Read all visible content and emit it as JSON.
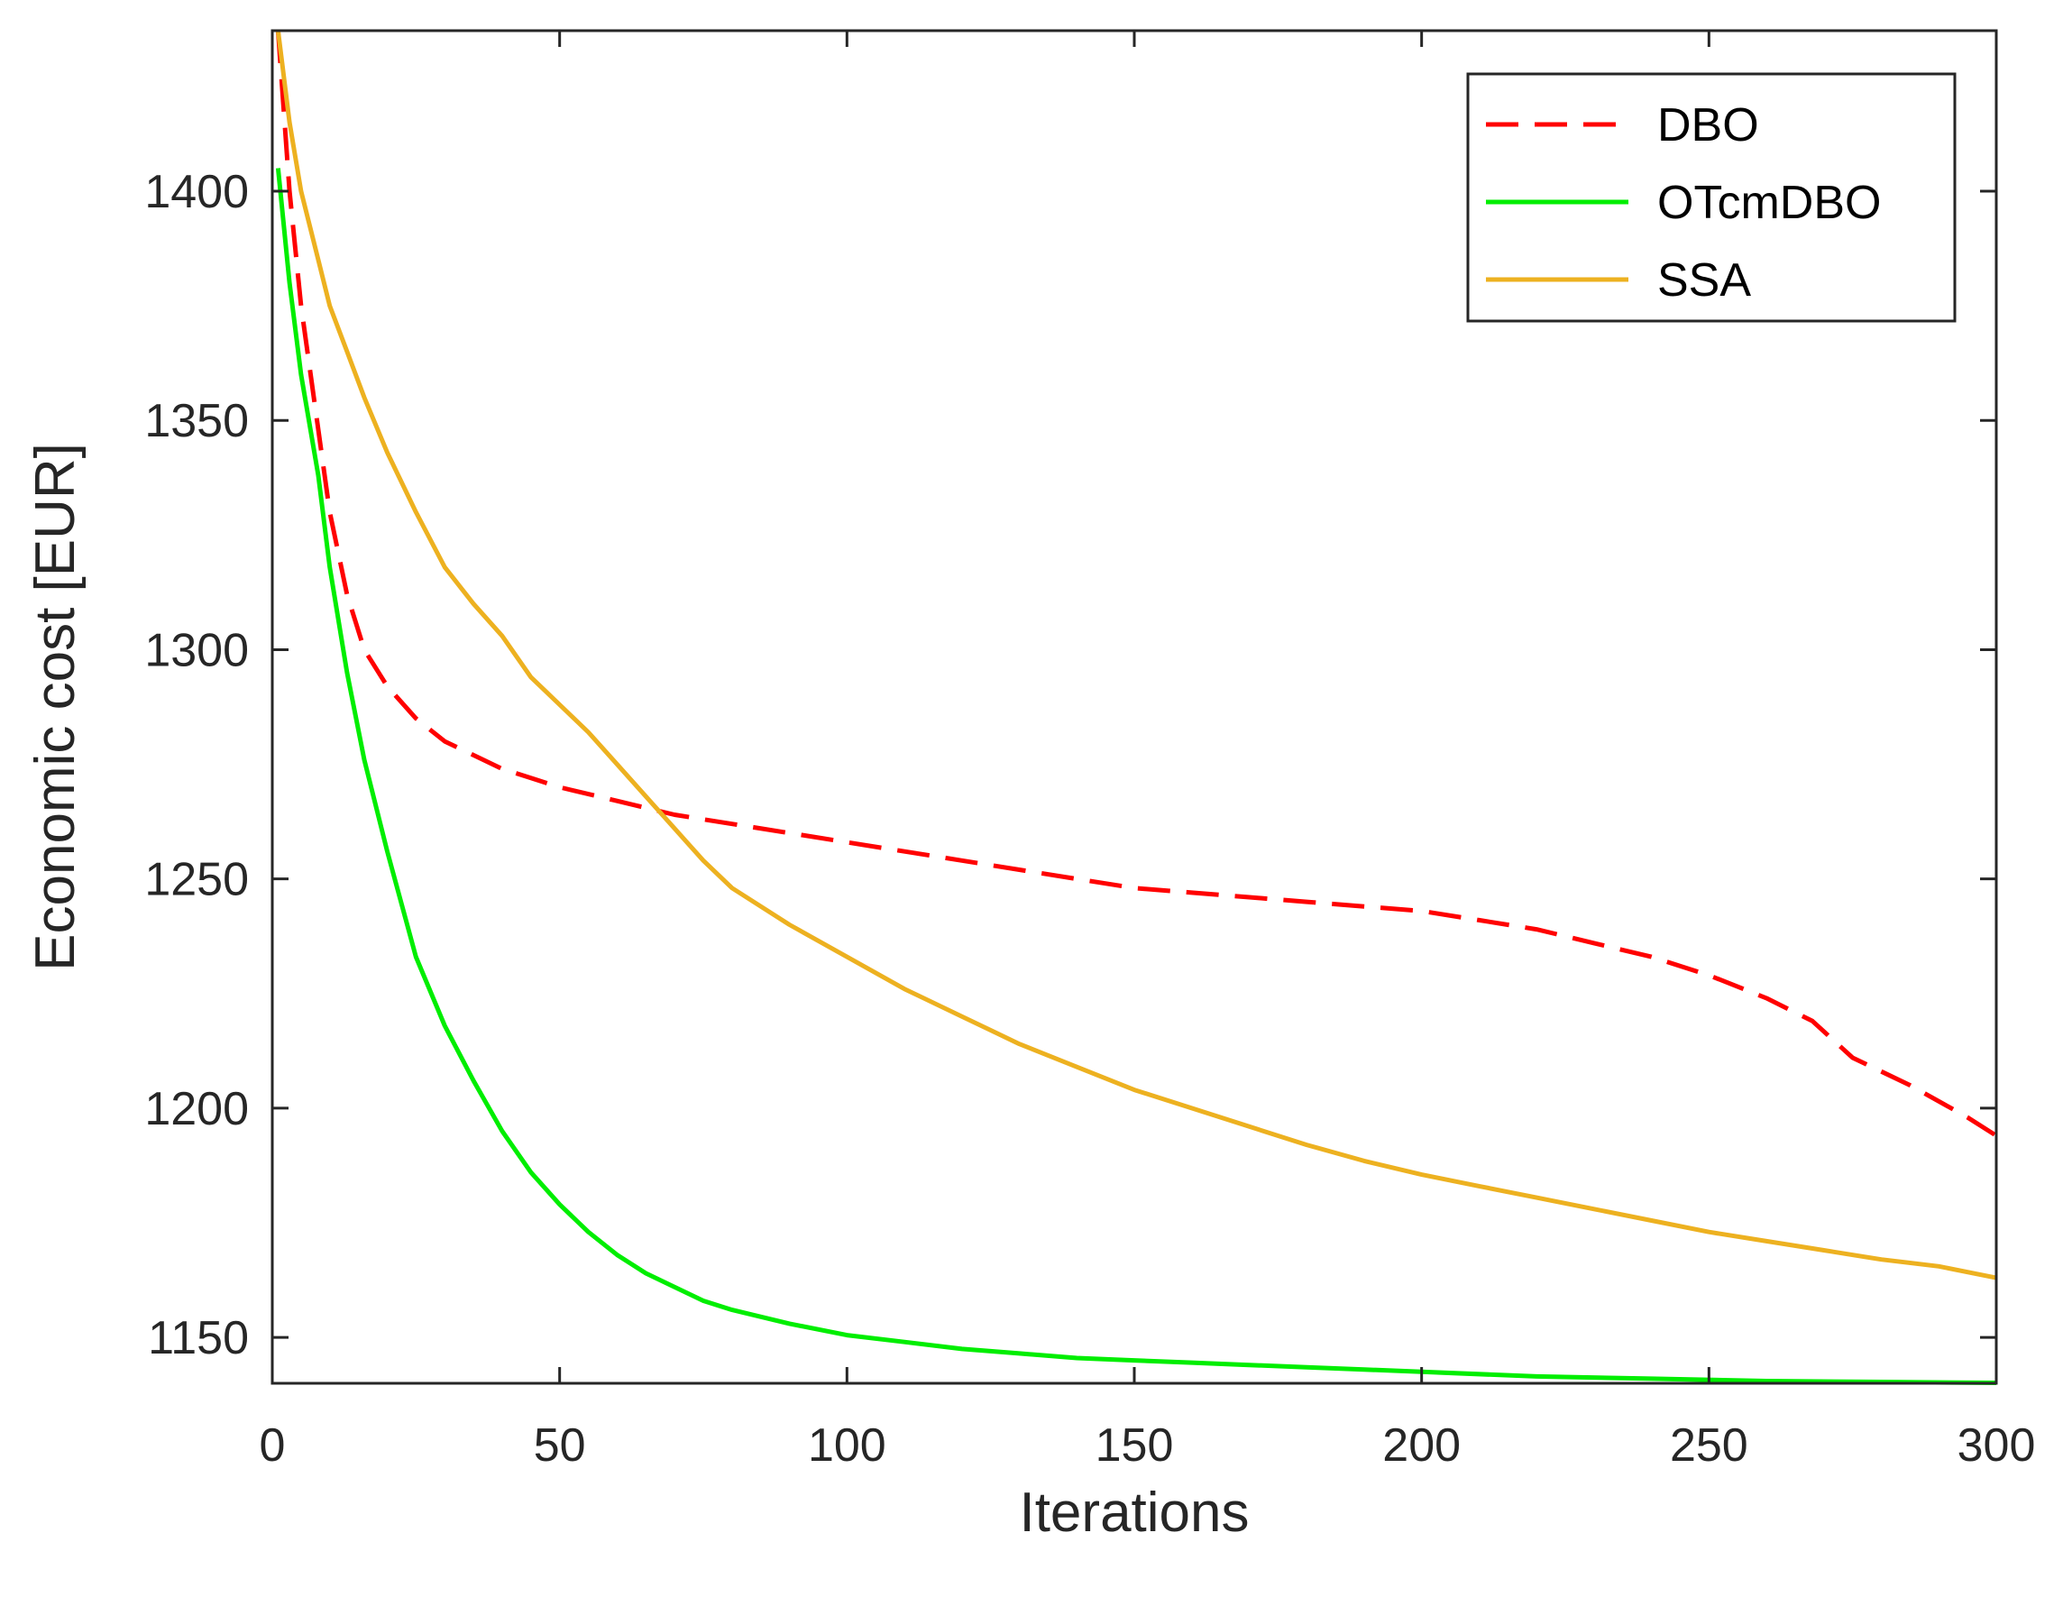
{
  "chart_data": {
    "type": "line",
    "title": "",
    "xlabel": "Iterations",
    "ylabel": "Economic cost [EUR]",
    "xlim": [
      0,
      300
    ],
    "ylim": [
      1140,
      1435
    ],
    "xticks": [
      0,
      50,
      100,
      150,
      200,
      250,
      300
    ],
    "yticks": [
      1150,
      1200,
      1250,
      1300,
      1350,
      1400
    ],
    "xtick_labels": [
      "0",
      "50",
      "100",
      "150",
      "200",
      "250",
      "300"
    ],
    "ytick_labels": [
      "1150",
      "1200",
      "1250",
      "1300",
      "1350",
      "1400"
    ],
    "grid": false,
    "legend_position": "top-right",
    "series": [
      {
        "name": "DBO",
        "color": "#ff0000",
        "dash": "dashed",
        "x": [
          1,
          3,
          5,
          8,
          10,
          13,
          16,
          20,
          25,
          30,
          35,
          40,
          45,
          50,
          60,
          70,
          80,
          90,
          100,
          110,
          120,
          130,
          140,
          150,
          160,
          170,
          180,
          190,
          200,
          210,
          220,
          230,
          240,
          250,
          260,
          268,
          275,
          285,
          295,
          300
        ],
        "y": [
          1435,
          1400,
          1375,
          1348,
          1330,
          1312,
          1300,
          1292,
          1285,
          1280,
          1277,
          1274,
          1272,
          1270,
          1267,
          1264,
          1262,
          1260,
          1258,
          1256,
          1254,
          1252,
          1250,
          1248,
          1247,
          1246,
          1245,
          1244,
          1243,
          1241,
          1239,
          1236,
          1233,
          1229,
          1224,
          1219,
          1211,
          1205,
          1198,
          1194
        ]
      },
      {
        "name": "OTcmDBO",
        "color": "#00ee00",
        "dash": "solid",
        "x": [
          1,
          3,
          5,
          8,
          10,
          13,
          16,
          20,
          25,
          30,
          35,
          40,
          45,
          50,
          55,
          60,
          65,
          70,
          75,
          80,
          90,
          100,
          110,
          120,
          130,
          140,
          150,
          160,
          170,
          180,
          190,
          200,
          220,
          240,
          260,
          280,
          300
        ],
        "y": [
          1405,
          1380,
          1360,
          1338,
          1318,
          1295,
          1276,
          1256,
          1233,
          1218,
          1206,
          1195,
          1186,
          1179,
          1173,
          1168,
          1164,
          1161,
          1158,
          1156,
          1153,
          1150.5,
          1149,
          1147.5,
          1146.5,
          1145.5,
          1145,
          1144.5,
          1144,
          1143.5,
          1143,
          1142.5,
          1141.5,
          1141,
          1140.5,
          1140.3,
          1140.1
        ]
      },
      {
        "name": "SSA",
        "color": "#edb120",
        "dash": "solid",
        "x": [
          1,
          3,
          5,
          8,
          10,
          13,
          16,
          20,
          25,
          30,
          35,
          40,
          45,
          50,
          55,
          60,
          65,
          70,
          75,
          80,
          90,
          100,
          110,
          120,
          130,
          140,
          150,
          160,
          170,
          180,
          190,
          200,
          210,
          220,
          230,
          240,
          250,
          260,
          270,
          280,
          290,
          300
        ],
        "y": [
          1435,
          1415,
          1400,
          1385,
          1375,
          1365,
          1355,
          1343,
          1330,
          1318,
          1310,
          1303,
          1294,
          1288,
          1282,
          1275,
          1268,
          1261,
          1254,
          1248,
          1240,
          1233,
          1226,
          1220,
          1214,
          1209,
          1204,
          1200,
          1196,
          1192,
          1188.5,
          1185.5,
          1183,
          1180.5,
          1178,
          1175.5,
          1173,
          1171,
          1169,
          1167,
          1165.5,
          1163
        ]
      }
    ]
  }
}
